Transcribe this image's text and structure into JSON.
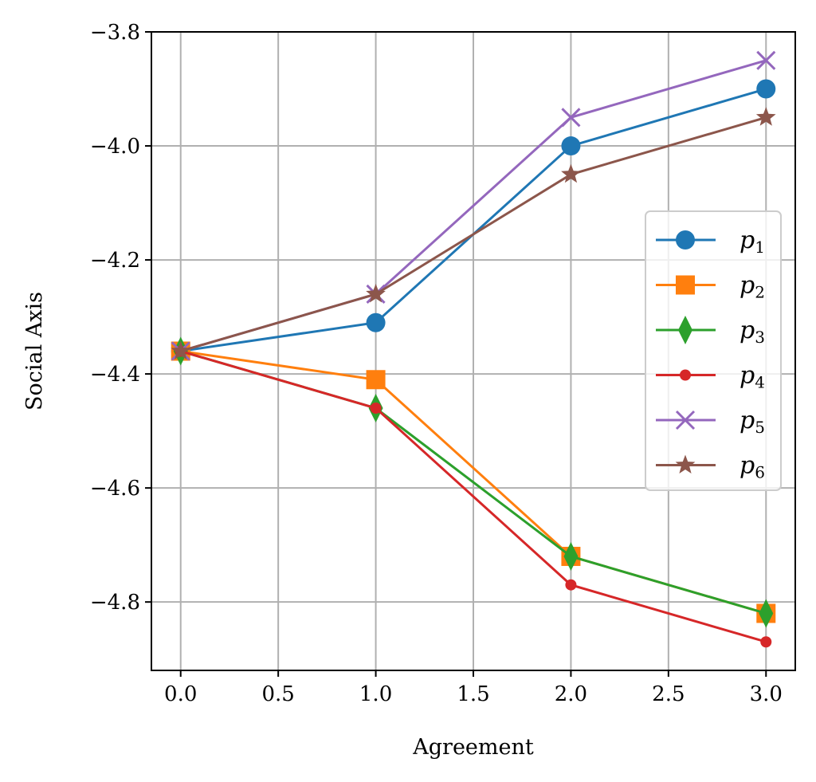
{
  "chart_data": {
    "type": "line",
    "title": "",
    "xlabel": "Agreement",
    "ylabel": "Social Axis",
    "xlim": [
      -0.15,
      3.15
    ],
    "ylim": [
      -4.92,
      -3.8
    ],
    "xticks": [
      0.0,
      0.5,
      1.0,
      1.5,
      2.0,
      2.5,
      3.0
    ],
    "xtick_labels": [
      "0.0",
      "0.5",
      "1.0",
      "1.5",
      "2.0",
      "2.5",
      "3.0"
    ],
    "yticks": [
      -3.8,
      -4.0,
      -4.2,
      -4.4,
      -4.6,
      -4.8
    ],
    "ytick_labels": [
      "−3.8",
      "−4.0",
      "−4.2",
      "−4.4",
      "−4.6",
      "−4.8"
    ],
    "grid": true,
    "legend_position": "center-right",
    "x": [
      0,
      1,
      2,
      3
    ],
    "series": [
      {
        "name": "p1",
        "base": "p",
        "sub": "1",
        "color": "#1f77b4",
        "marker": "circle",
        "values": [
          -4.36,
          -4.31,
          -4.0,
          -3.9
        ]
      },
      {
        "name": "p2",
        "base": "p",
        "sub": "2",
        "color": "#ff7f0e",
        "marker": "square",
        "values": [
          -4.36,
          -4.41,
          -4.72,
          -4.82
        ]
      },
      {
        "name": "p3",
        "base": "p",
        "sub": "3",
        "color": "#2ca02c",
        "marker": "diamond",
        "values": [
          -4.36,
          -4.46,
          -4.72,
          -4.82
        ]
      },
      {
        "name": "p4",
        "base": "p",
        "sub": "4",
        "color": "#d62728",
        "marker": "point",
        "values": [
          -4.36,
          -4.46,
          -4.77,
          -4.87
        ]
      },
      {
        "name": "p5",
        "base": "p",
        "sub": "5",
        "color": "#9467bd",
        "marker": "x",
        "values": [
          -4.36,
          -4.26,
          -3.95,
          -3.85
        ]
      },
      {
        "name": "p6",
        "base": "p",
        "sub": "6",
        "color": "#8c564b",
        "marker": "star",
        "values": [
          -4.36,
          -4.26,
          -4.05,
          -3.95
        ]
      }
    ]
  }
}
